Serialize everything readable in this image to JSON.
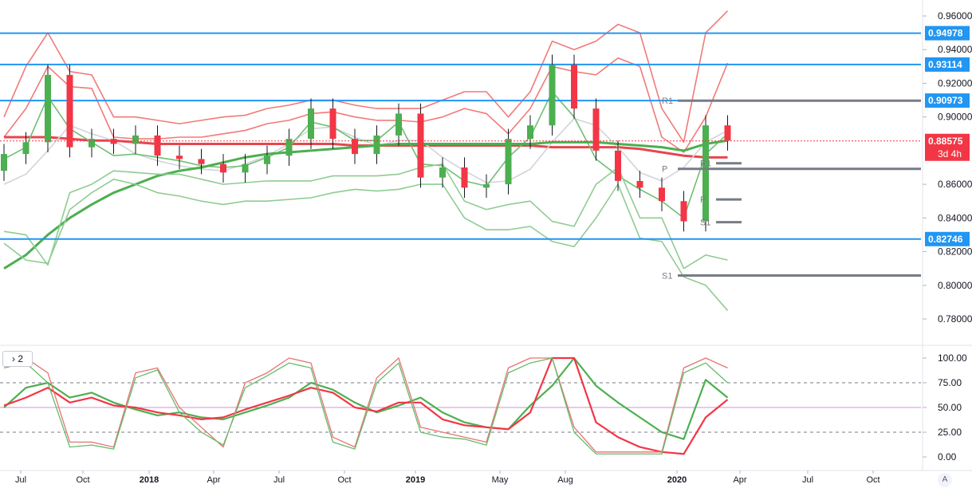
{
  "chart_data": [
    {
      "type": "line",
      "title": "",
      "description_scope": "weekly candlestick price chart with Bollinger bands, moving averages and pivot levels",
      "xlabel": "",
      "ylabel": "",
      "x_ticks": [
        "Jul",
        "Oct",
        "2018",
        "Apr",
        "Jul",
        "Oct",
        "2019",
        "May",
        "Aug",
        "2020",
        "Apr",
        "Jul",
        "Oct"
      ],
      "y_ticks": [
        "0.96000",
        "0.94000",
        "0.92000",
        "0.90000",
        "0.86000",
        "0.84000",
        "0.82000",
        "0.80000",
        "0.78000"
      ],
      "ylim": [
        0.775,
        0.965
      ],
      "grid": false,
      "horizontal_levels": [
        {
          "label": "0.94978",
          "value": 0.94978,
          "color": "#2196f3"
        },
        {
          "label": "0.93114",
          "value": 0.93114,
          "color": "#2196f3"
        },
        {
          "label": "0.90973",
          "value": 0.90973,
          "color": "#2196f3"
        },
        {
          "label": "0.82746",
          "value": 0.82746,
          "color": "#2196f3"
        }
      ],
      "last_price": {
        "label": "0.88575",
        "value": 0.88575,
        "countdown": "3d 4h",
        "color": "#f23645"
      },
      "pivot_levels": [
        {
          "name": "R1",
          "value": 0.9097
        },
        {
          "name": "P",
          "value": 0.8692
        },
        {
          "name": "S1",
          "value": 0.8058
        },
        {
          "name": "R1",
          "value": 0.8725
        },
        {
          "name": "P",
          "value": 0.851
        },
        {
          "name": "S1",
          "value": 0.8375
        }
      ],
      "candle_dates": [
        "2017-06",
        "2017-07",
        "2017-08",
        "2017-09",
        "2017-10",
        "2017-11",
        "2017-12",
        "2018-01",
        "2018-02",
        "2018-03",
        "2018-04",
        "2018-05",
        "2018-06",
        "2018-07",
        "2018-08",
        "2018-09",
        "2018-10",
        "2018-11",
        "2018-12",
        "2019-01",
        "2019-02",
        "2019-03",
        "2019-04",
        "2019-05",
        "2019-06",
        "2019-07",
        "2019-08",
        "2019-09",
        "2019-10",
        "2019-11",
        "2019-12",
        "2020-01",
        "2020-02",
        "2020-03"
      ],
      "candle_close": [
        0.878,
        0.885,
        0.925,
        0.882,
        0.887,
        0.884,
        0.889,
        0.877,
        0.875,
        0.872,
        0.867,
        0.872,
        0.877,
        0.887,
        0.905,
        0.887,
        0.878,
        0.889,
        0.902,
        0.864,
        0.87,
        0.858,
        0.86,
        0.887,
        0.895,
        0.931,
        0.905,
        0.88,
        0.862,
        0.858,
        0.85,
        0.838,
        0.895,
        0.886
      ],
      "series": [
        {
          "name": "",
          "color": "#f07b78",
          "values": [
            0.9,
            0.93,
            0.95,
            0.927,
            0.925,
            0.9,
            0.9,
            0.898,
            0.896,
            0.898,
            0.9,
            0.901,
            0.905,
            0.907,
            0.91,
            0.91,
            0.907,
            0.905,
            0.905,
            0.905,
            0.91,
            0.915,
            0.915,
            0.9,
            0.915,
            0.945,
            0.94,
            0.945,
            0.955,
            0.95,
            0.905,
            0.885,
            0.95,
            0.963
          ]
        },
        {
          "name": "",
          "color": "#f07b78",
          "values": [
            0.888,
            0.905,
            0.93,
            0.918,
            0.917,
            0.888,
            0.887,
            0.887,
            0.888,
            0.888,
            0.89,
            0.892,
            0.896,
            0.898,
            0.902,
            0.903,
            0.9,
            0.898,
            0.898,
            0.897,
            0.9,
            0.905,
            0.902,
            0.89,
            0.905,
            0.93,
            0.927,
            0.925,
            0.935,
            0.93,
            0.888,
            0.879,
            0.9,
            0.932
          ]
        },
        {
          "name": "",
          "color": "#e5474e",
          "values": [
            0.888,
            0.888,
            0.888,
            0.887,
            0.886,
            0.886,
            0.885,
            0.884,
            0.884,
            0.884,
            0.884,
            0.884,
            0.884,
            0.884,
            0.884,
            0.884,
            0.883,
            0.883,
            0.883,
            0.883,
            0.883,
            0.883,
            0.883,
            0.883,
            0.883,
            0.882,
            0.882,
            0.882,
            0.882,
            0.881,
            0.879,
            0.877,
            0.876,
            0.876
          ]
        },
        {
          "name": "",
          "color": "#d1d4dc",
          "values": [
            0.86,
            0.866,
            0.88,
            0.895,
            0.89,
            0.886,
            0.878,
            0.874,
            0.871,
            0.869,
            0.868,
            0.872,
            0.877,
            0.884,
            0.893,
            0.894,
            0.888,
            0.883,
            0.886,
            0.886,
            0.876,
            0.868,
            0.861,
            0.862,
            0.869,
            0.885,
            0.899,
            0.895,
            0.882,
            0.867,
            0.862,
            0.87,
            0.885,
            0.892
          ]
        },
        {
          "name": "",
          "color": "#6fbf73",
          "values": [
            0.875,
            0.882,
            0.912,
            0.893,
            0.885,
            0.877,
            0.878,
            0.876,
            0.874,
            0.871,
            0.87,
            0.871,
            0.876,
            0.882,
            0.897,
            0.894,
            0.886,
            0.886,
            0.897,
            0.872,
            0.871,
            0.862,
            0.859,
            0.876,
            0.888,
            0.915,
            0.9,
            0.875,
            0.865,
            0.857,
            0.85,
            0.84,
            0.878,
            0.89
          ]
        },
        {
          "name": "",
          "color": "#4caf50",
          "values": [
            0.81,
            0.818,
            0.83,
            0.84,
            0.848,
            0.855,
            0.86,
            0.865,
            0.868,
            0.87,
            0.873,
            0.876,
            0.878,
            0.879,
            0.88,
            0.881,
            0.882,
            0.883,
            0.884,
            0.884,
            0.884,
            0.884,
            0.884,
            0.884,
            0.884,
            0.885,
            0.885,
            0.885,
            0.884,
            0.883,
            0.882,
            0.88,
            0.884,
            0.886
          ]
        },
        {
          "name": "",
          "color": "#8fcc92",
          "values": [
            0.832,
            0.83,
            0.812,
            0.855,
            0.86,
            0.868,
            0.867,
            0.866,
            0.866,
            0.863,
            0.86,
            0.861,
            0.862,
            0.862,
            0.862,
            0.865,
            0.865,
            0.865,
            0.866,
            0.87,
            0.872,
            0.85,
            0.845,
            0.848,
            0.85,
            0.838,
            0.835,
            0.86,
            0.87,
            0.84,
            0.84,
            0.81,
            0.818,
            0.815
          ]
        },
        {
          "name": "",
          "color": "#8fcc92",
          "values": [
            0.825,
            0.815,
            0.813,
            0.845,
            0.855,
            0.863,
            0.86,
            0.855,
            0.853,
            0.85,
            0.848,
            0.85,
            0.85,
            0.851,
            0.852,
            0.855,
            0.857,
            0.856,
            0.857,
            0.86,
            0.86,
            0.84,
            0.833,
            0.833,
            0.835,
            0.826,
            0.823,
            0.84,
            0.86,
            0.828,
            0.826,
            0.805,
            0.8,
            0.785
          ]
        }
      ]
    },
    {
      "type": "line",
      "title": "",
      "xlabel": "",
      "ylabel": "",
      "panel_label": "2",
      "ylim": [
        -5,
        105
      ],
      "y_ticks": [
        "100.00",
        "75.00",
        "50.00",
        "25.00",
        "0.00"
      ],
      "reference_lines": [
        75,
        50,
        25
      ],
      "grid": false,
      "series": [
        {
          "name": "",
          "color": "#4caf50",
          "values": [
            50,
            70,
            75,
            60,
            65,
            55,
            48,
            42,
            45,
            40,
            38,
            45,
            52,
            60,
            75,
            68,
            55,
            45,
            52,
            60,
            45,
            35,
            30,
            28,
            52,
            72,
            100,
            72,
            55,
            40,
            25,
            18,
            78,
            60
          ]
        },
        {
          "name": "",
          "color": "#f23645",
          "values": [
            52,
            60,
            70,
            55,
            60,
            52,
            50,
            45,
            42,
            38,
            40,
            48,
            55,
            62,
            70,
            65,
            50,
            46,
            55,
            55,
            38,
            32,
            30,
            28,
            45,
            100,
            100,
            35,
            20,
            10,
            5,
            3,
            40,
            58
          ]
        },
        {
          "name": "",
          "color": "#e57373",
          "values": [
            95,
            100,
            85,
            15,
            15,
            10,
            85,
            90,
            50,
            30,
            10,
            75,
            85,
            100,
            95,
            20,
            10,
            80,
            100,
            30,
            25,
            20,
            15,
            90,
            100,
            100,
            30,
            5,
            5,
            5,
            5,
            90,
            100,
            90
          ]
        },
        {
          "name": "",
          "color": "#66bb6a",
          "values": [
            90,
            95,
            75,
            10,
            12,
            8,
            80,
            88,
            45,
            25,
            12,
            70,
            82,
            95,
            90,
            15,
            8,
            75,
            95,
            25,
            20,
            18,
            12,
            85,
            95,
            100,
            25,
            3,
            3,
            3,
            3,
            85,
            95,
            75
          ]
        }
      ]
    }
  ],
  "ui": {
    "panel_collapse_label": "2",
    "auto_scale_label": "A"
  },
  "colors": {
    "up": "#4caf50",
    "down": "#f23645",
    "level": "#2196f3",
    "pivot": "#787b86"
  }
}
